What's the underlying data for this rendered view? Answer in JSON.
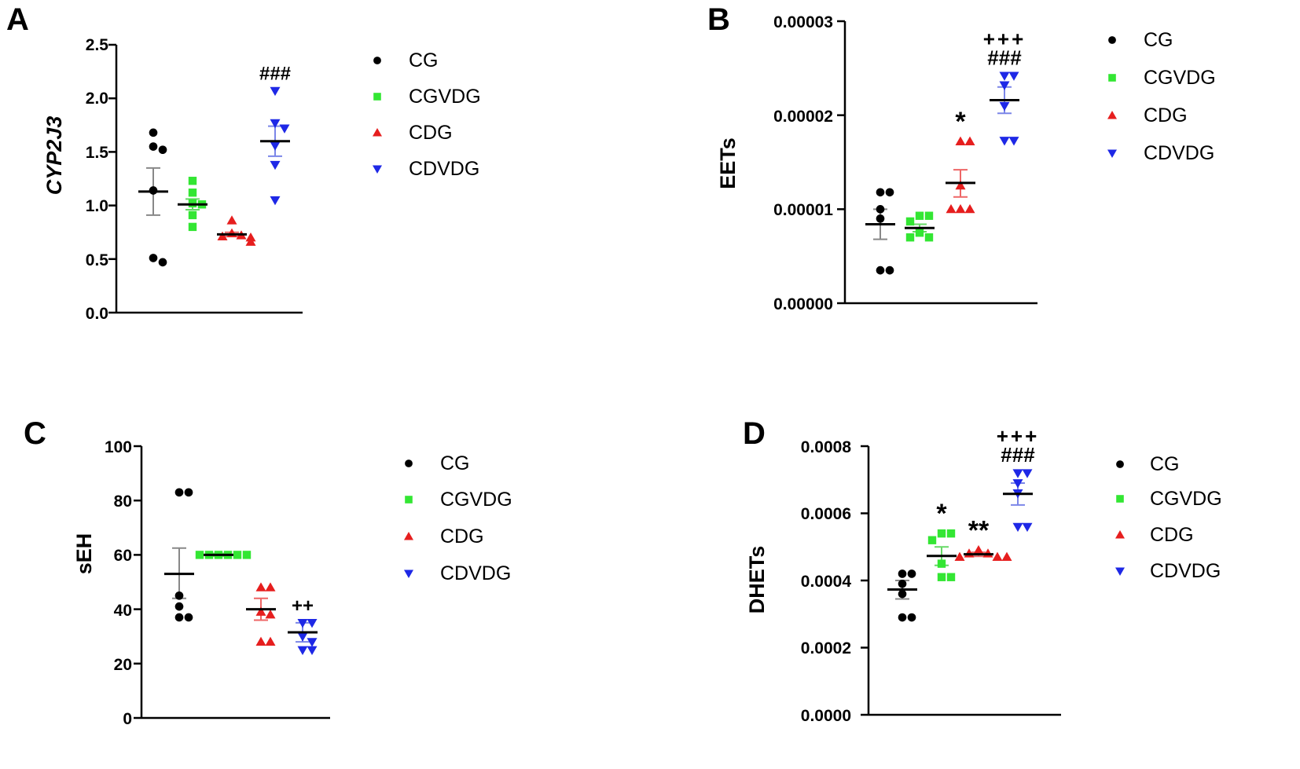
{
  "figure": {
    "colors": {
      "CG": "#000000",
      "CGVDG": "#33e633",
      "CDG": "#e61e1e",
      "CDVDG": "#1e28e6"
    },
    "err_colors": {
      "CG": "#888888",
      "CGVDG": "#66d966",
      "CDG": "#ee6666",
      "CDVDG": "#7b86e8"
    },
    "shapes": {
      "CG": "circle",
      "CGVDG": "square",
      "CDG": "triangle-up",
      "CDVDG": "triangle-down"
    }
  },
  "chart_data": [
    {
      "panel": "A",
      "type": "scatter",
      "ylabel": "CYP2J3",
      "ylabel_italic": true,
      "ylim": [
        0,
        2.5
      ],
      "yticks": [
        "0.0",
        "0.5",
        "1.0",
        "1.5",
        "2.0",
        "2.5"
      ],
      "legend": [
        "CG",
        "CGVDG",
        "CDG",
        "CDVDG"
      ],
      "groups": [
        {
          "name": "CG",
          "values": [
            1.68,
            1.55,
            1.52,
            1.14,
            0.51,
            0.47
          ],
          "mean": 1.13,
          "sem_low": 0.91,
          "sem_high": 1.35,
          "annotation": ""
        },
        {
          "name": "CGVDG",
          "values": [
            1.23,
            1.12,
            1.02,
            1.01,
            0.91,
            0.8
          ],
          "mean": 1.01,
          "sem_low": 0.96,
          "sem_high": 1.06,
          "annotation": ""
        },
        {
          "name": "CDG",
          "values": [
            0.86,
            0.74,
            0.72,
            0.71,
            0.7,
            0.66
          ],
          "mean": 0.73,
          "sem_low": 0.71,
          "sem_high": 0.75,
          "annotation": ""
        },
        {
          "name": "CDVDG",
          "values": [
            2.07,
            1.77,
            1.72,
            1.56,
            1.38,
            1.05
          ],
          "mean": 1.6,
          "sem_low": 1.46,
          "sem_high": 1.74,
          "annotation": "###"
        }
      ]
    },
    {
      "panel": "B",
      "type": "scatter",
      "ylabel": "EETs",
      "ylabel_italic": false,
      "ylim": [
        0,
        3e-05
      ],
      "yticks": [
        "0.00000",
        "0.00001",
        "0.00002",
        "0.00003"
      ],
      "legend": [
        "CG",
        "CGVDG",
        "CDG",
        "CDVDG"
      ],
      "groups": [
        {
          "name": "CG",
          "values": [
            1.18e-05,
            1.18e-05,
            1e-05,
            9e-06,
            3.5e-06,
            3.5e-06
          ],
          "mean": 8.4e-06,
          "sem_low": 6.8e-06,
          "sem_high": 1e-05,
          "annotation": ""
        },
        {
          "name": "CGVDG",
          "values": [
            9.3e-06,
            9.3e-06,
            8.7e-06,
            7.5e-06,
            7e-06,
            7e-06
          ],
          "mean": 8e-06,
          "sem_low": 7.6e-06,
          "sem_high": 8.4e-06,
          "annotation": ""
        },
        {
          "name": "CDG",
          "values": [
            1.72e-05,
            1.72e-05,
            1.25e-05,
            1e-05,
            1e-05,
            1e-05
          ],
          "mean": 1.28e-05,
          "sem_low": 1.13e-05,
          "sem_high": 1.42e-05,
          "annotation": "*"
        },
        {
          "name": "CDVDG",
          "values": [
            2.42e-05,
            2.42e-05,
            2.32e-05,
            2.1e-05,
            1.73e-05,
            1.73e-05
          ],
          "mean": 2.16e-05,
          "sem_low": 2.02e-05,
          "sem_high": 2.3e-05,
          "annotation": "###",
          "annotation_top": "+++"
        }
      ]
    },
    {
      "panel": "C",
      "type": "scatter",
      "ylabel": "sEH",
      "ylabel_italic": false,
      "ylim": [
        0,
        100
      ],
      "yticks": [
        "0",
        "20",
        "40",
        "60",
        "80",
        "100"
      ],
      "legend": [
        "CG",
        "CGVDG",
        "CDG",
        "CDVDG"
      ],
      "groups": [
        {
          "name": "CG",
          "values": [
            83,
            83,
            45,
            41,
            37,
            37
          ],
          "mean": 53,
          "sem_low": 44,
          "sem_high": 62.5,
          "annotation": ""
        },
        {
          "name": "CGVDG",
          "values": [
            60,
            60,
            60,
            60,
            60,
            60
          ],
          "mean": 60,
          "sem_low": 59.5,
          "sem_high": 60.5,
          "annotation": ""
        },
        {
          "name": "CDG",
          "values": [
            48,
            48,
            39,
            38,
            28,
            28
          ],
          "mean": 40,
          "sem_low": 36,
          "sem_high": 44,
          "annotation": ""
        },
        {
          "name": "CDVDG",
          "values": [
            35,
            35,
            30,
            28,
            25,
            25
          ],
          "mean": 31.5,
          "sem_low": 28,
          "sem_high": 35,
          "annotation": "++"
        }
      ]
    },
    {
      "panel": "D",
      "type": "scatter",
      "ylabel": "DHETs",
      "ylabel_italic": false,
      "ylim": [
        0,
        0.0008
      ],
      "yticks": [
        "0.0000",
        "0.0002",
        "0.0004",
        "0.0006",
        "0.0008"
      ],
      "legend": [
        "CG",
        "CGVDG",
        "CDG",
        "CDVDG"
      ],
      "groups": [
        {
          "name": "CG",
          "values": [
            0.00042,
            0.00042,
            0.00039,
            0.00036,
            0.00029,
            0.00029
          ],
          "mean": 0.000373,
          "sem_low": 0.000345,
          "sem_high": 0.0004,
          "annotation": ""
        },
        {
          "name": "CGVDG",
          "values": [
            0.00054,
            0.00054,
            0.00052,
            0.00045,
            0.00041,
            0.00041
          ],
          "mean": 0.000473,
          "sem_low": 0.000445,
          "sem_high": 0.0005,
          "annotation": "*"
        },
        {
          "name": "CDG",
          "values": [
            0.00049,
            0.00048,
            0.00048,
            0.00047,
            0.00047,
            0.00047
          ],
          "mean": 0.000478,
          "sem_low": 0.000472,
          "sem_high": 0.000484,
          "annotation": "**"
        },
        {
          "name": "CDVDG",
          "values": [
            0.00072,
            0.00072,
            0.00069,
            0.00066,
            0.00056,
            0.00056
          ],
          "mean": 0.000658,
          "sem_low": 0.000625,
          "sem_high": 0.00069,
          "annotation": "###",
          "annotation_top": "+++"
        }
      ]
    }
  ]
}
